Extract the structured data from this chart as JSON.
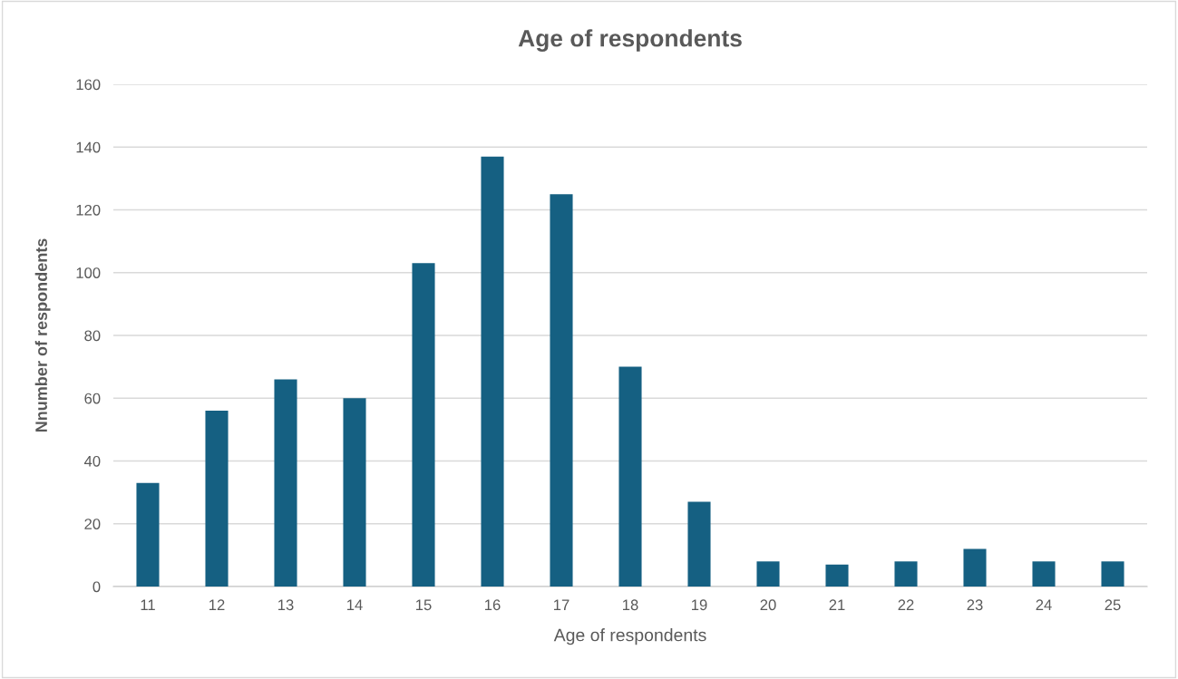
{
  "chart_data": {
    "type": "bar",
    "title": "Age of respondents",
    "xlabel": "Age of respondents",
    "ylabel": "Nnumber of respondents",
    "categories": [
      "11",
      "12",
      "13",
      "14",
      "15",
      "16",
      "17",
      "18",
      "19",
      "20",
      "21",
      "22",
      "23",
      "24",
      "25"
    ],
    "values": [
      33,
      56,
      66,
      60,
      103,
      137,
      125,
      70,
      27,
      8,
      7,
      8,
      12,
      8,
      8
    ],
    "color": "#156082",
    "ylim": [
      0,
      160
    ],
    "yticks": [
      0,
      20,
      40,
      60,
      80,
      100,
      120,
      140,
      160
    ],
    "grid": "y",
    "legend": false
  }
}
